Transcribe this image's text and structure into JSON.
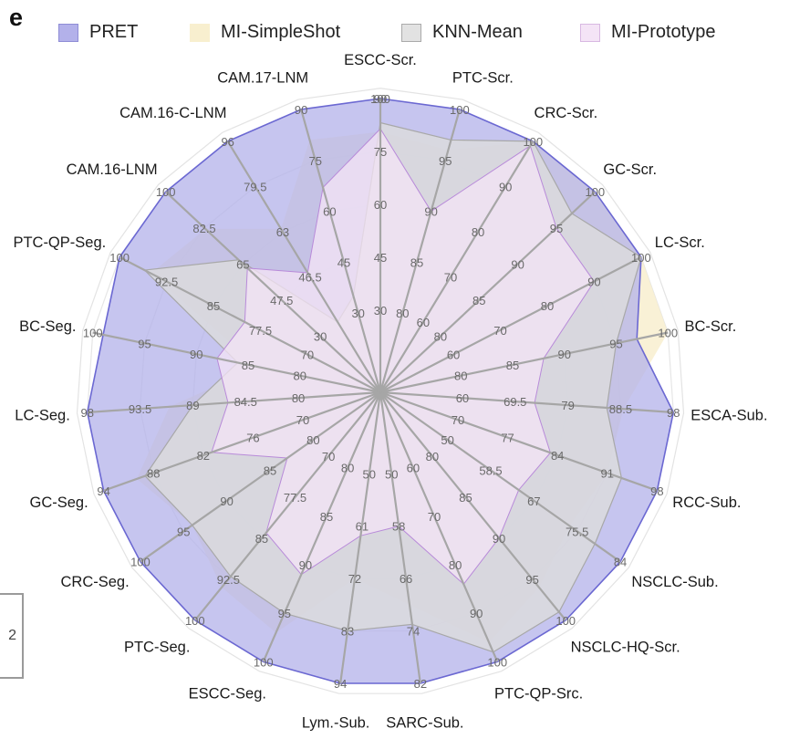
{
  "figure": {
    "panel_letter": "e",
    "edge_fragment": "2"
  },
  "legend": [
    {
      "label": "PRET",
      "color": "#b3b1ea"
    },
    {
      "label": "MI-SimpleShot",
      "color": "#f8efcf"
    },
    {
      "label": "KNN-Mean",
      "color": "#e2e2e2"
    },
    {
      "label": "MI-Prototype",
      "color": "#f4e4f6"
    }
  ],
  "chart_data": {
    "type": "radar",
    "title": "",
    "grid": true,
    "legend_position": "top",
    "axes": [
      {
        "name": "ESCC-Scr.",
        "ticks": [
          "30",
          "45",
          "60",
          "75",
          "90"
        ],
        "max_label": "100"
      },
      {
        "name": "PTC-Scr.",
        "ticks": [
          "80",
          "85",
          "90",
          "95"
        ],
        "max_label": "100"
      },
      {
        "name": "CRC-Scr.",
        "ticks": [
          "60",
          "70",
          "80",
          "90"
        ],
        "max_label": "100"
      },
      {
        "name": "GC-Scr.",
        "ticks": [
          "80",
          "85",
          "90",
          "95"
        ],
        "max_label": "100"
      },
      {
        "name": "LC-Scr.",
        "ticks": [
          "60",
          "70",
          "80",
          "90"
        ],
        "max_label": "100"
      },
      {
        "name": "BC-Scr.",
        "ticks": [
          "80",
          "85",
          "90",
          "95"
        ],
        "max_label": "100"
      },
      {
        "name": "ESCA-Sub.",
        "ticks": [
          "60",
          "69.5",
          "79",
          "88.5"
        ],
        "max_label": "98"
      },
      {
        "name": "RCC-Sub.",
        "ticks": [
          "70",
          "77",
          "84",
          "91"
        ],
        "max_label": "98"
      },
      {
        "name": "NSCLC-Sub.",
        "ticks": [
          "50",
          "58.5",
          "67",
          "75.5"
        ],
        "max_label": "84"
      },
      {
        "name": "NSCLC-HQ-Scr.",
        "ticks": [
          "80",
          "85",
          "90",
          "95"
        ],
        "max_label": "100"
      },
      {
        "name": "PTC-QP-Src.",
        "ticks": [
          "60",
          "70",
          "80",
          "90"
        ],
        "max_label": "100"
      },
      {
        "name": "SARC-Sub.",
        "ticks": [
          "50",
          "58",
          "66",
          "74"
        ],
        "max_label": "82"
      },
      {
        "name": "Lym.-Sub.",
        "ticks": [
          "50",
          "61",
          "72",
          "83"
        ],
        "max_label": "94"
      },
      {
        "name": "ESCC-Seg.",
        "ticks": [
          "80",
          "85",
          "90",
          "95"
        ],
        "max_label": "100"
      },
      {
        "name": "PTC-Seg.",
        "ticks": [
          "70",
          "77.5",
          "85",
          "92.5"
        ],
        "max_label": "100"
      },
      {
        "name": "CRC-Seg.",
        "ticks": [
          "80",
          "85",
          "90",
          "95"
        ],
        "max_label": "100"
      },
      {
        "name": "GC-Seg.",
        "ticks": [
          "70",
          "76",
          "82",
          "88"
        ],
        "max_label": "94"
      },
      {
        "name": "LC-Seg.",
        "ticks": [
          "80",
          "84.5",
          "89",
          "93.5"
        ],
        "max_label": "98"
      },
      {
        "name": "BC-Seg.",
        "ticks": [
          "80",
          "85",
          "90",
          "95"
        ],
        "max_label": "100"
      },
      {
        "name": "PTC-QP-Seg.",
        "ticks": [
          "70",
          "77.5",
          "85",
          "92.5"
        ],
        "max_label": "100"
      },
      {
        "name": "CAM.16-LNM",
        "ticks": [
          "30",
          "47.5",
          "65",
          "82.5"
        ],
        "max_label": "100"
      },
      {
        "name": "CAM.16-C-LNM",
        "ticks": [
          "46.5",
          "63",
          "79.5"
        ],
        "max_label": "96"
      },
      {
        "name": "CAM.17-LNM",
        "ticks": [
          "30",
          "45",
          "60",
          "75"
        ],
        "max_label": "90"
      }
    ],
    "series": [
      {
        "name": "PRET",
        "values": [
          100,
          100,
          100,
          100,
          100,
          97,
          98,
          98,
          84,
          100,
          100,
          82,
          94,
          100,
          100,
          100,
          94,
          98,
          99,
          100,
          100,
          96,
          90
        ]
      },
      {
        "name": "MI-SimpleShot",
        "values": [
          89,
          96,
          100,
          100,
          100,
          100,
          89,
          91,
          74,
          96,
          96,
          70,
          72,
          97,
          94,
          94,
          90,
          91,
          84,
          95,
          82,
          72,
          81
        ]
      },
      {
        "name": "KNN-Mean",
        "values": [
          92,
          97,
          100,
          97,
          100,
          95,
          86,
          93,
          79,
          99,
          98,
          73,
          83,
          95,
          92,
          94,
          89,
          89,
          86,
          96,
          67,
          39,
          35
        ]
      },
      {
        "name": "MI-Prototype",
        "values": [
          90,
          90,
          99,
          95,
          90,
          88,
          73,
          83,
          64,
          90,
          84,
          58,
          63,
          91,
          84,
          83,
          81,
          86,
          88,
          80,
          63,
          60,
          67
        ]
      }
    ]
  }
}
